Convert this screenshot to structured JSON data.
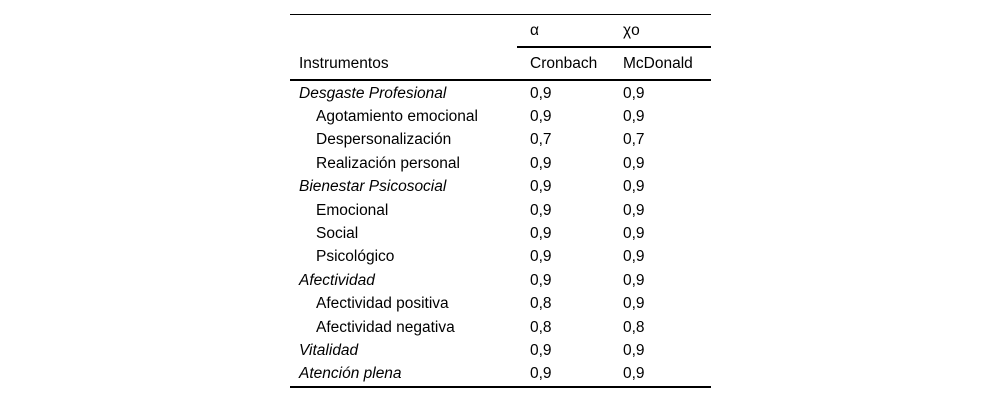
{
  "colors": {
    "text": "#000000",
    "background": "#ffffff",
    "rule": "#000000"
  },
  "table": {
    "top_header": {
      "alpha": "α",
      "omega": "χo"
    },
    "columns": {
      "instruments": "Instrumentos",
      "cronbach": "Cronbach",
      "mcdonald": "McDonald"
    },
    "rows": [
      {
        "label": "Desgaste Profesional",
        "cronbach": "0,9",
        "mcdonald": "0,9"
      },
      {
        "label": "Agotamiento emocional",
        "cronbach": "0,9",
        "mcdonald": "0,9"
      },
      {
        "label": "Despersonalización",
        "cronbach": "0,7",
        "mcdonald": "0,7"
      },
      {
        "label": "Realización personal",
        "cronbach": "0,9",
        "mcdonald": "0,9"
      },
      {
        "label": "Bienestar Psicosocial",
        "cronbach": "0,9",
        "mcdonald": "0,9"
      },
      {
        "label": "Emocional",
        "cronbach": "0,9",
        "mcdonald": "0,9"
      },
      {
        "label": "Social",
        "cronbach": "0,9",
        "mcdonald": "0,9"
      },
      {
        "label": "Psicológico",
        "cronbach": "0,9",
        "mcdonald": "0,9"
      },
      {
        "label": "Afectividad",
        "cronbach": "0,9",
        "mcdonald": "0,9"
      },
      {
        "label": "Afectividad positiva",
        "cronbach": "0,8",
        "mcdonald": "0,9"
      },
      {
        "label": "Afectividad negativa",
        "cronbach": "0,8",
        "mcdonald": "0,8"
      },
      {
        "label": "Vitalidad",
        "cronbach": "0,9",
        "mcdonald": "0,9"
      },
      {
        "label": "Atención plena",
        "cronbach": "0,9",
        "mcdonald": "0,9"
      }
    ]
  }
}
